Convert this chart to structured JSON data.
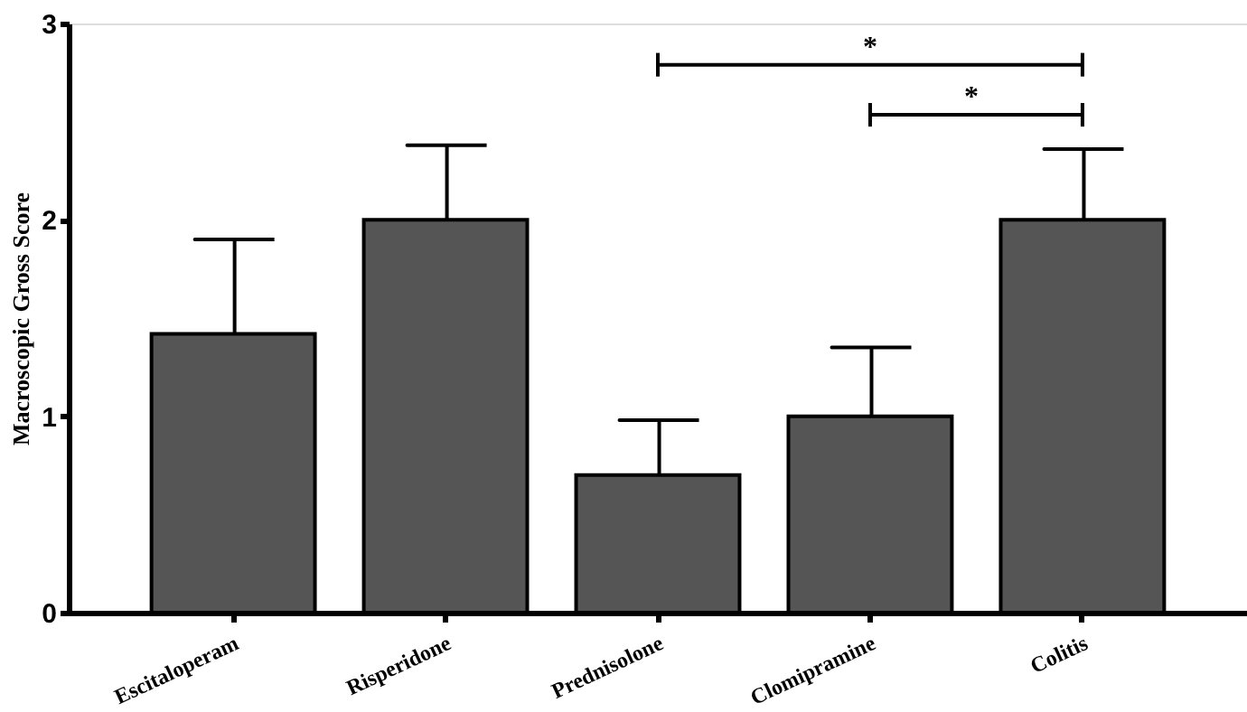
{
  "chart_data": {
    "type": "bar",
    "ylabel": "Macroscopic Gross Score",
    "categories": [
      "Escitaloperam",
      "Risperidone",
      "Prednisolone",
      "Clomipramine",
      "Colitis"
    ],
    "values": [
      1.42,
      2.0,
      0.7,
      1.0,
      2.0
    ],
    "errors": [
      0.48,
      0.38,
      0.28,
      0.35,
      0.36
    ],
    "color": "#555555",
    "ylim": [
      0,
      3
    ],
    "yticks": [
      0,
      1,
      2,
      3
    ],
    "grid": false,
    "annotations": [
      "*",
      "*"
    ]
  }
}
